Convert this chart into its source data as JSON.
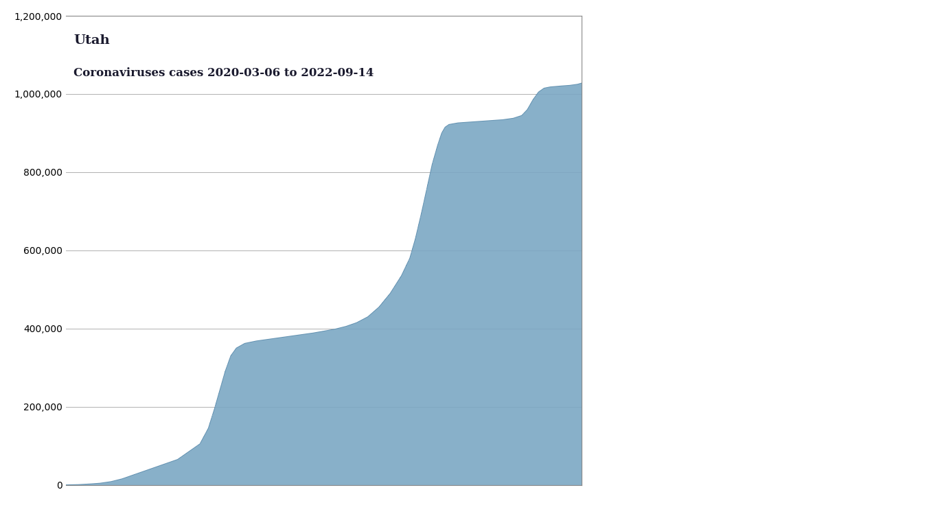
{
  "title_line1": "Utah",
  "title_line2": "Coronaviruses cases 2020-03-06 to 2022-09-14",
  "fill_color": "#7ba7c4",
  "fill_alpha": 0.85,
  "line_color": "#6090b0",
  "line_width": 0.6,
  "background_color": "#ffffff",
  "grid_color": "#b0b0b0",
  "ylim": [
    0,
    1200000
  ],
  "yticks": [
    0,
    200000,
    400000,
    600000,
    800000,
    1000000,
    1200000
  ],
  "ytick_labels": [
    "0",
    "200,000",
    "400,000",
    "600,000",
    "800,000",
    "1,000,000",
    "1,200,000"
  ],
  "title_fontsize": 13,
  "title_color": "#1a1a2e",
  "figsize": [
    13.66,
    7.68
  ],
  "dpi": 100,
  "control_points": [
    [
      0,
      0
    ],
    [
      20,
      500
    ],
    [
      40,
      2000
    ],
    [
      60,
      4000
    ],
    [
      80,
      8000
    ],
    [
      100,
      15000
    ],
    [
      120,
      25000
    ],
    [
      140,
      35000
    ],
    [
      160,
      45000
    ],
    [
      180,
      55000
    ],
    [
      200,
      65000
    ],
    [
      220,
      85000
    ],
    [
      240,
      105000
    ],
    [
      255,
      145000
    ],
    [
      265,
      190000
    ],
    [
      275,
      240000
    ],
    [
      285,
      290000
    ],
    [
      295,
      330000
    ],
    [
      305,
      350000
    ],
    [
      320,
      362000
    ],
    [
      340,
      368000
    ],
    [
      360,
      372000
    ],
    [
      380,
      376000
    ],
    [
      400,
      380000
    ],
    [
      420,
      384000
    ],
    [
      440,
      388000
    ],
    [
      460,
      393000
    ],
    [
      480,
      398000
    ],
    [
      500,
      405000
    ],
    [
      520,
      415000
    ],
    [
      540,
      430000
    ],
    [
      560,
      455000
    ],
    [
      580,
      490000
    ],
    [
      600,
      535000
    ],
    [
      615,
      580000
    ],
    [
      625,
      630000
    ],
    [
      635,
      690000
    ],
    [
      645,
      755000
    ],
    [
      655,
      820000
    ],
    [
      665,
      870000
    ],
    [
      672,
      900000
    ],
    [
      678,
      915000
    ],
    [
      685,
      922000
    ],
    [
      700,
      926000
    ],
    [
      720,
      928000
    ],
    [
      740,
      930000
    ],
    [
      760,
      932000
    ],
    [
      780,
      934000
    ],
    [
      800,
      938000
    ],
    [
      815,
      945000
    ],
    [
      825,
      960000
    ],
    [
      835,
      985000
    ],
    [
      845,
      1005000
    ],
    [
      855,
      1015000
    ],
    [
      865,
      1018000
    ],
    [
      880,
      1020000
    ],
    [
      900,
      1022000
    ],
    [
      915,
      1025000
    ],
    [
      927,
      1030000
    ]
  ]
}
